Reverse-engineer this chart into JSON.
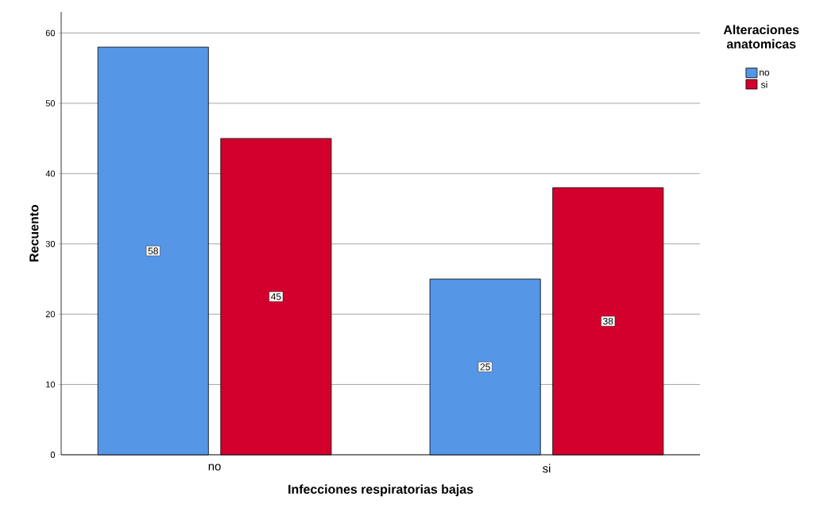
{
  "chart_data": {
    "type": "bar",
    "xlabel": "Infecciones respiratorias bajas",
    "ylabel": "Recuento",
    "legend_title": "Alteraciones anatomicas",
    "categories": [
      "no",
      "si"
    ],
    "series": [
      {
        "name": "no",
        "color": "#5596e6",
        "values": [
          58,
          25
        ]
      },
      {
        "name": "si",
        "color": "#d3002d",
        "values": [
          45,
          38
        ]
      }
    ],
    "ylim": [
      0,
      63
    ],
    "yticks": [
      0,
      10,
      20,
      30,
      40,
      50,
      60
    ],
    "grid": "y",
    "legend": "top right",
    "data_labels": true
  }
}
